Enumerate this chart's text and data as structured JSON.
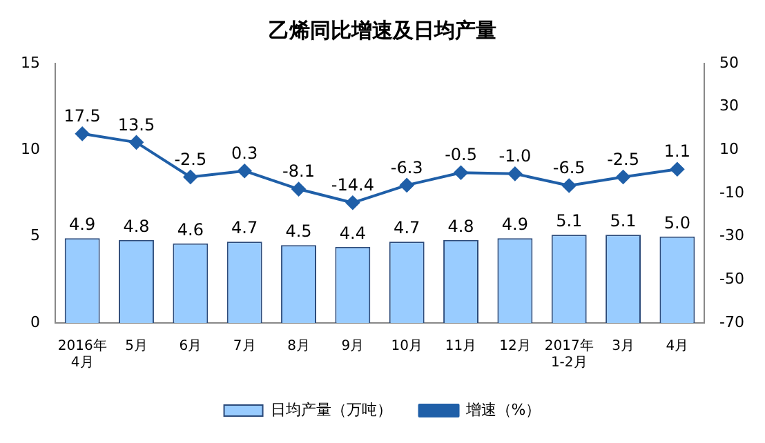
{
  "chart_data": {
    "type": "bar",
    "title": "乙烯同比增速及日均产量",
    "categories": [
      "2016年\n4月",
      "5月",
      "6月",
      "7月",
      "8月",
      "9月",
      "10月",
      "11月",
      "12月",
      "2017年\n1-2月",
      "3月",
      "4月"
    ],
    "series": [
      {
        "name": "日均产量（万吨）",
        "color": "#99ccff",
        "values": [
          4.9,
          4.8,
          4.6,
          4.7,
          4.5,
          4.4,
          4.7,
          4.8,
          4.9,
          5.1,
          5.1,
          5.0
        ],
        "value_labels": [
          "4.9",
          "4.8",
          "4.6",
          "4.7",
          "4.5",
          "4.4",
          "4.7",
          "4.8",
          "4.9",
          "5.1",
          "5.1",
          "5.0"
        ]
      },
      {
        "name": "增速（%）",
        "type": "line",
        "axis": "y2",
        "color": "#1f5fa8",
        "values": [
          17.5,
          13.5,
          -2.5,
          0.3,
          -8.1,
          -14.4,
          -6.3,
          -0.5,
          -1.0,
          -6.5,
          -2.5,
          1.1
        ],
        "value_labels": [
          "17.5",
          "13.5",
          "-2.5",
          "0.3",
          "-8.1",
          "-14.4",
          "-6.3",
          "-0.5",
          "-1.0",
          "-6.5",
          "-2.5",
          "1.1"
        ]
      }
    ],
    "ylim": [
      0,
      15
    ],
    "yticks": [
      0,
      5,
      10,
      15
    ],
    "y2lim": [
      -70,
      50
    ],
    "y2ticks": [
      -70,
      -50,
      -30,
      -10,
      10,
      30,
      50
    ],
    "legend": "bottom",
    "marker": "diamond",
    "grid": false
  }
}
